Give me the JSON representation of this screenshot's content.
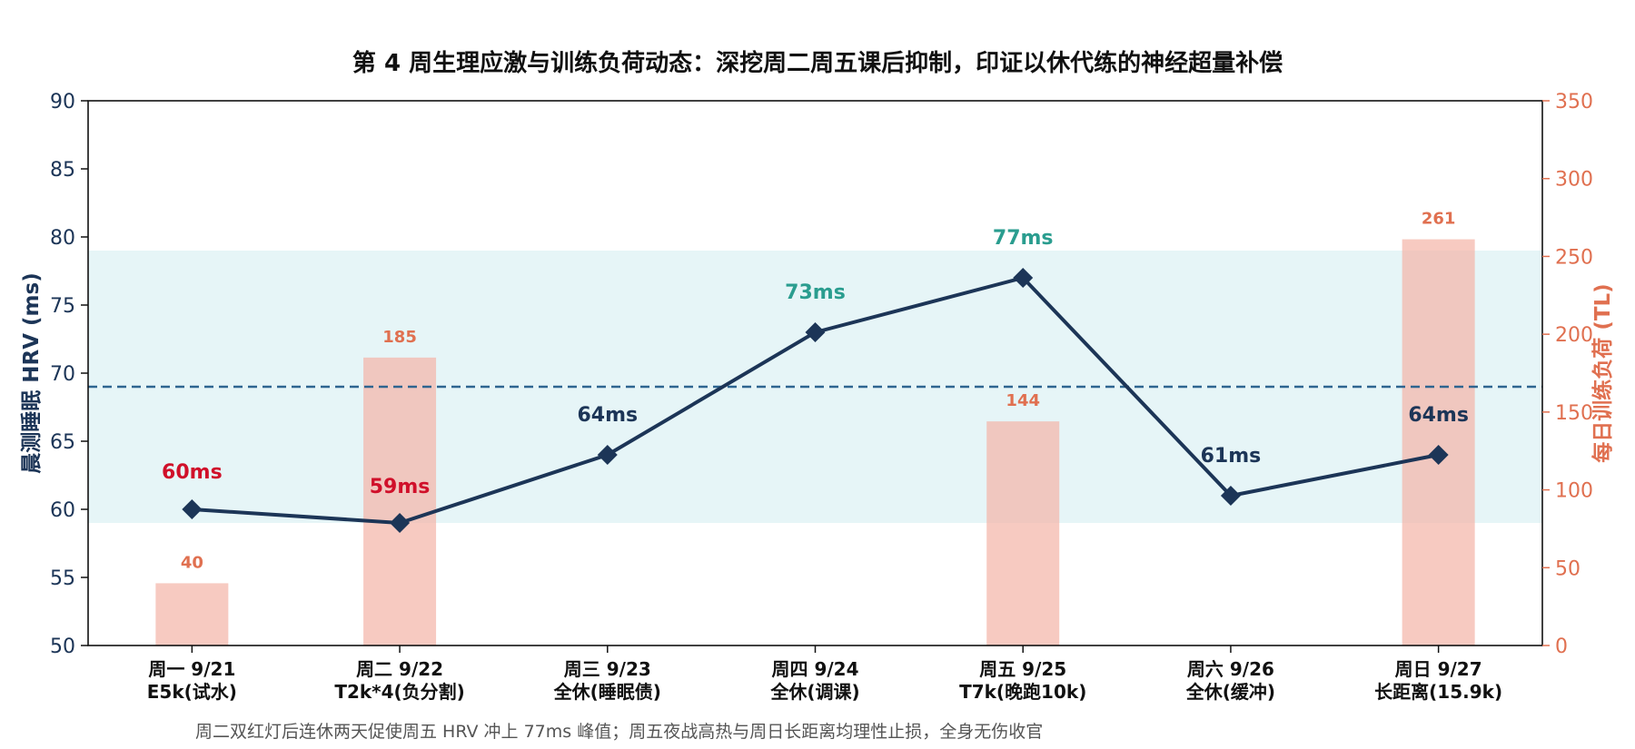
{
  "chart_data": {
    "type": "bar+line",
    "title": "第 4 周生理应激与训练负荷动态：深挖周二周五课后抑制，印证以休代练的神经超量补偿",
    "categories": [
      [
        "周一 9/21",
        "E5k(试水)"
      ],
      [
        "周二 9/22",
        "T2k*4(负分割)"
      ],
      [
        "周三 9/23",
        "全休(睡眠债)"
      ],
      [
        "周四 9/24",
        "全休(调课)"
      ],
      [
        "周五 9/25",
        "T7k(晚跑10k)"
      ],
      [
        "周六 9/26",
        "全休(缓冲)"
      ],
      [
        "周日 9/27",
        "长距离(15.9k)"
      ]
    ],
    "hrv": {
      "name": "晨测睡眠 HRV (ms)",
      "values": [
        60,
        59,
        64,
        73,
        77,
        61,
        64
      ],
      "labels": [
        "60ms",
        "59ms",
        "64ms",
        "73ms",
        "77ms",
        "61ms",
        "64ms"
      ],
      "label_colors": [
        "#d0102a",
        "#d0102a",
        "#1c3557",
        "#2a9d8f",
        "#2a9d8f",
        "#1c3557",
        "#1c3557"
      ],
      "color": "#1c3557"
    },
    "training_load": {
      "name": "每日训练负荷 (TL)",
      "values": [
        40,
        185,
        0,
        0,
        144,
        0,
        261
      ],
      "labels": [
        "40",
        "185",
        "",
        "",
        "144",
        "",
        "261"
      ],
      "color": "#f4b3a6"
    },
    "ylabel_left": "晨测睡眠 HRV (ms)",
    "ylabel_right": "每日训练负荷 (TL)",
    "ylim_left": [
      50,
      90
    ],
    "yticks_left": [
      50,
      55,
      60,
      65,
      70,
      75,
      80,
      85,
      90
    ],
    "ylim_right": [
      0,
      350
    ],
    "yticks_right": [
      0,
      50,
      100,
      150,
      200,
      250,
      300,
      350
    ],
    "baseline_hrv": 69,
    "normal_band": [
      59,
      79
    ],
    "note": "周二双红灯后连休两天促使周五 HRV 冲上 77ms 峰值；周五夜战高热与周日长距离均理性止损，全身无伤收官",
    "colors": {
      "left_axis": "#1c3557",
      "right_axis": "#e07050",
      "band": "#d6eef1",
      "baseline": "#2e6590"
    }
  }
}
